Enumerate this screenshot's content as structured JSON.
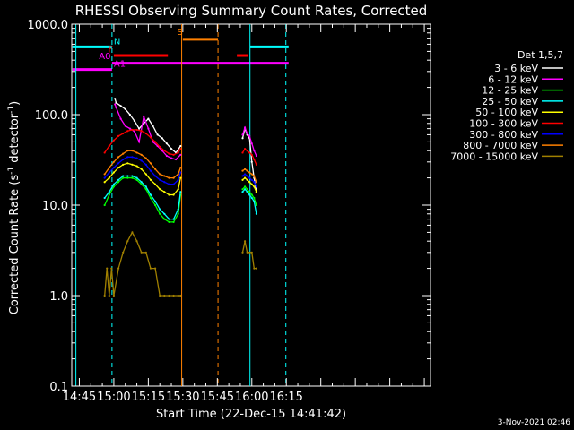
{
  "chart_data": {
    "type": "line",
    "title": "RHESSI Observing Summary Count Rates, Corrected",
    "xlabel": "Start Time (22-Dec-15 14:41:42)",
    "ylabel_main": "Corrected Count Rate (s",
    "ylabel_sup1": "-1",
    "ylabel_mid": " detector",
    "ylabel_sup2": "-1",
    "ylabel_end": ")",
    "yscale": "log",
    "ylim": [
      0.1,
      1000
    ],
    "xlim_minutes": [
      41.7,
      197.7
    ],
    "x_ticks": [
      {
        "label": "14:45",
        "m": 45
      },
      {
        "label": "15:00",
        "m": 60
      },
      {
        "label": "15:15",
        "m": 75
      },
      {
        "label": "15:30",
        "m": 90
      },
      {
        "label": "15:45",
        "m": 105
      },
      {
        "label": "16:00",
        "m": 120
      },
      {
        "label": "16:15",
        "m": 135
      }
    ],
    "y_ticks": [
      {
        "label": "1000.0",
        "v": 1000
      },
      {
        "label": "100.0",
        "v": 100
      },
      {
        "label": "10.0",
        "v": 10
      },
      {
        "label": "1.0",
        "v": 1
      },
      {
        "label": "0.1",
        "v": 0.1
      }
    ],
    "legend_title": "Det 1,5,7",
    "legend_position": "right",
    "series": [
      {
        "name": "3 - 6 keV",
        "color": "#ffffff",
        "segments": [
          {
            "x": [
              60.5,
              61,
              63,
              65,
              67,
              69,
              71,
              73,
              75,
              77,
              79,
              81,
              83,
              85,
              87,
              89
            ],
            "y": [
              150,
              135,
              125,
              115,
              100,
              85,
              70,
              80,
              90,
              75,
              60,
              55,
              48,
              42,
              38,
              45
            ]
          },
          {
            "x": [
              116,
              117,
              118,
              119,
              120,
              121,
              122
            ],
            "y": [
              55,
              70,
              60,
              55,
              30,
              20,
              14
            ]
          }
        ]
      },
      {
        "name": "6 - 12 keV",
        "color": "#ff00ff",
        "segments": [
          {
            "x": [
              60.5,
              61,
              63,
              65,
              67,
              69,
              71,
              73,
              75,
              77,
              79,
              81,
              83,
              85,
              87,
              89
            ],
            "y": [
              130,
              120,
              90,
              75,
              70,
              65,
              50,
              95,
              70,
              50,
              45,
              40,
              35,
              33,
              32,
              36
            ]
          },
          {
            "x": [
              116,
              117,
              118,
              119,
              120,
              121,
              122
            ],
            "y": [
              60,
              72,
              62,
              58,
              48,
              40,
              35
            ]
          }
        ]
      },
      {
        "name": "12 - 25 keV",
        "color": "#00ff00",
        "segments": [
          {
            "x": [
              56,
              58,
              60,
              62,
              64,
              66,
              68,
              70,
              72,
              74,
              76,
              78,
              80,
              82,
              84,
              86,
              88,
              89
            ],
            "y": [
              10,
              13,
              16,
              18,
              20,
              20,
              20,
              19,
              17,
              15,
              12,
              10,
              8,
              7,
              6.5,
              6.5,
              8,
              13
            ]
          },
          {
            "x": [
              116,
              117,
              118,
              119,
              120,
              121,
              122
            ],
            "y": [
              15,
              16,
              15,
              14,
              13,
              12,
              10
            ]
          }
        ]
      },
      {
        "name": "25 - 50 keV",
        "color": "#00ffff",
        "segments": [
          {
            "x": [
              56,
              58,
              60,
              62,
              64,
              66,
              68,
              70,
              72,
              74,
              76,
              78,
              80,
              82,
              84,
              86,
              88,
              89
            ],
            "y": [
              12,
              14,
              17,
              19,
              21,
              21,
              21,
              20,
              18,
              16,
              13,
              11,
              9,
              8,
              7,
              7,
              9,
              14
            ]
          },
          {
            "x": [
              116,
              117,
              118,
              119,
              120,
              121,
              122
            ],
            "y": [
              14,
              15,
              14,
              13,
              12,
              11,
              8
            ]
          }
        ]
      },
      {
        "name": "50 - 100 keV",
        "color": "#ffff00",
        "segments": [
          {
            "x": [
              56,
              58,
              60,
              62,
              64,
              66,
              68,
              70,
              72,
              74,
              76,
              78,
              80,
              82,
              84,
              86,
              88,
              89
            ],
            "y": [
              18,
              20,
              23,
              26,
              28,
              29,
              28,
              27,
              25,
              22,
              19,
              17,
              15,
              14,
              13,
              13,
              15,
              20
            ]
          },
          {
            "x": [
              116,
              117,
              118,
              119,
              120,
              121,
              122
            ],
            "y": [
              19,
              20,
              19,
              18,
              17,
              16,
              14
            ]
          }
        ]
      },
      {
        "name": "100 - 300 keV",
        "color": "#ff0000",
        "segments": [
          {
            "x": [
              56,
              58,
              60,
              62,
              64,
              66,
              68,
              70,
              72,
              74,
              76,
              78,
              80,
              82,
              84,
              86,
              88,
              89
            ],
            "y": [
              38,
              45,
              52,
              58,
              62,
              66,
              68,
              68,
              66,
              62,
              56,
              50,
              44,
              40,
              37,
              36,
              38,
              42
            ]
          },
          {
            "x": [
              116,
              117,
              118,
              119,
              120,
              121,
              122
            ],
            "y": [
              38,
              42,
              40,
              38,
              36,
              32,
              28
            ]
          }
        ]
      },
      {
        "name": "300 - 800 keV",
        "color": "#0000ff",
        "segments": [
          {
            "x": [
              56,
              58,
              60,
              62,
              64,
              66,
              68,
              70,
              72,
              74,
              76,
              78,
              80,
              82,
              84,
              86,
              88,
              89
            ],
            "y": [
              20,
              23,
              26,
              29,
              32,
              34,
              34,
              33,
              31,
              28,
              24,
              21,
              19,
              18,
              17,
              17,
              19,
              23
            ]
          },
          {
            "x": [
              116,
              117,
              118,
              119,
              120,
              121,
              122
            ],
            "y": [
              21,
              22,
              21,
              20,
              19,
              18,
              16
            ]
          }
        ]
      },
      {
        "name": "800 - 7000 keV",
        "color": "#ff8000",
        "segments": [
          {
            "x": [
              56,
              58,
              60,
              62,
              64,
              66,
              68,
              70,
              72,
              74,
              76,
              78,
              80,
              82,
              84,
              86,
              88,
              89
            ],
            "y": [
              22,
              26,
              30,
              34,
              37,
              40,
              40,
              38,
              36,
              33,
              29,
              25,
              22,
              21,
              20,
              20,
              22,
              26
            ]
          },
          {
            "x": [
              116,
              117,
              118,
              119,
              120,
              121,
              122
            ],
            "y": [
              24,
              25,
              24,
              23,
              22,
              21,
              18
            ]
          }
        ]
      },
      {
        "name": "7000 - 15000 keV",
        "color": "#a08000",
        "segments": [
          {
            "x": [
              56,
              57,
              58,
              59,
              60,
              62,
              64,
              66,
              68,
              70,
              72,
              74,
              76,
              78,
              80,
              82,
              84,
              86,
              88,
              89
            ],
            "y": [
              1,
              2,
              1,
              2,
              1,
              2,
              3,
              4,
              5,
              4,
              3,
              3,
              2,
              2,
              1,
              1,
              1,
              1,
              1,
              1
            ]
          },
          {
            "x": [
              116,
              117,
              118,
              119,
              120,
              121,
              122
            ],
            "y": [
              3,
              4,
              3,
              3,
              3,
              2,
              2
            ]
          }
        ]
      }
    ],
    "vertical_markers": [
      {
        "m": 43.5,
        "color": "#00ffff",
        "style": "solid"
      },
      {
        "m": 59.2,
        "color": "#00ffff",
        "style": "dashed"
      },
      {
        "m": 89.5,
        "color": "#ff8000",
        "style": "solid"
      },
      {
        "m": 105.3,
        "color": "#ff8000",
        "style": "dashed"
      },
      {
        "m": 119.2,
        "color": "#00ffff",
        "style": "solid"
      },
      {
        "m": 134.8,
        "color": "#00ffff",
        "style": "dashed"
      }
    ],
    "flag_bars": [
      {
        "m0": 42,
        "m1": 59.2,
        "v": 560,
        "color": "#00ffff"
      },
      {
        "m0": 119.2,
        "m1": 136,
        "v": 560,
        "color": "#00ffff"
      },
      {
        "m0": 42,
        "m1": 59.2,
        "v": 315,
        "color": "#ff00ff"
      },
      {
        "m0": 59.2,
        "m1": 136,
        "v": 370,
        "color": "#ff00ff"
      },
      {
        "m0": 60,
        "m1": 83.5,
        "v": 450,
        "color": "#ff0000"
      },
      {
        "m0": 113.5,
        "m1": 118.5,
        "v": 450,
        "color": "#ff0000"
      },
      {
        "m0": 90,
        "m1": 105.3,
        "v": 680,
        "color": "#ff8000"
      }
    ],
    "flag_labels": [
      {
        "text": "N",
        "m": 60,
        "v": 560,
        "color": "#00ffff"
      },
      {
        "text": "S",
        "m": 87.5,
        "v": 710,
        "color": "#ff8000"
      },
      {
        "text": "F",
        "m": 57.5,
        "v": 455,
        "color": "#ff0000"
      },
      {
        "text": "A0",
        "m": 53.5,
        "v": 385,
        "color": "#ff00ff"
      },
      {
        "text": "A1",
        "m": 60,
        "v": 315,
        "color": "#ff00ff"
      }
    ]
  },
  "footer": {
    "timestamp": "3-Nov-2021 02:46"
  }
}
